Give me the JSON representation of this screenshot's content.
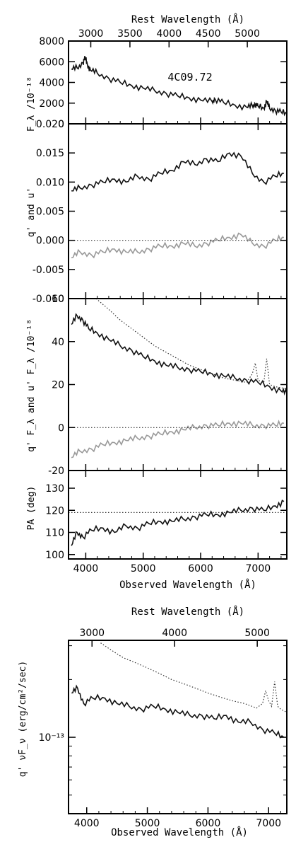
{
  "chart_data": [
    {
      "panel": "flux",
      "type": "line",
      "annotation": "4C09.72",
      "top_axis_label": "Rest Wavelength (Å)",
      "top_ticks": [
        3000,
        3500,
        4000,
        4500,
        5000
      ],
      "ylabel": "F_λ /10⁻¹⁸",
      "ylim": [
        0,
        8000
      ],
      "yticks": [
        0,
        2000,
        4000,
        6000,
        8000
      ],
      "xlim": [
        3700,
        7500
      ],
      "series": [
        {
          "style": "solid",
          "color": "#111111",
          "x": [
            3750,
            3850,
            3950,
            3990,
            4030,
            4080,
            4200,
            4400,
            4600,
            4800,
            5000,
            5200,
            5400,
            5600,
            5800,
            6000,
            6200,
            6250,
            6400,
            6600,
            6800,
            6900,
            6950,
            7000,
            7100,
            7150,
            7200,
            7300,
            7400,
            7500
          ],
          "y": [
            5300,
            5400,
            5900,
            6400,
            5700,
            5200,
            4900,
            4400,
            4000,
            3700,
            3450,
            3200,
            2950,
            2700,
            2500,
            2300,
            2150,
            2400,
            2050,
            1800,
            1600,
            1750,
            1900,
            1700,
            1500,
            2200,
            1500,
            1300,
            1150,
            1000
          ]
        }
      ]
    },
    {
      "panel": "fractional_polarization",
      "type": "line",
      "ylabel": "q' and u'",
      "ylim": [
        -0.01,
        0.02
      ],
      "yticks": [
        "-0.010",
        "-0.005",
        "0.000",
        "0.005",
        "0.010",
        "0.015",
        "0.020"
      ],
      "xlim": [
        3700,
        7500
      ],
      "series": [
        {
          "style": "solid",
          "color": "#111111",
          "x": [
            3750,
            3900,
            4100,
            4300,
            4500,
            4700,
            4900,
            5100,
            5300,
            5500,
            5700,
            5900,
            6100,
            6300,
            6500,
            6700,
            6900,
            7100,
            7300,
            7450
          ],
          "y": [
            0.0085,
            0.009,
            0.0095,
            0.01,
            0.0105,
            0.01,
            0.011,
            0.0105,
            0.0115,
            0.012,
            0.0135,
            0.013,
            0.014,
            0.0135,
            0.015,
            0.0145,
            0.0115,
            0.01,
            0.011,
            0.0115
          ]
        },
        {
          "style": "solid",
          "color": "#999999",
          "x": [
            3750,
            3900,
            4100,
            4300,
            4500,
            4700,
            4900,
            5100,
            5300,
            5500,
            5700,
            5900,
            6100,
            6300,
            6500,
            6700,
            6900,
            7100,
            7300,
            7450
          ],
          "y": [
            -0.003,
            -0.002,
            -0.0025,
            -0.002,
            -0.0015,
            -0.002,
            -0.002,
            -0.0015,
            -0.001,
            -0.001,
            -0.0005,
            -0.001,
            -0.0005,
            0.0,
            0.0005,
            0.001,
            -0.0005,
            -0.001,
            0.0,
            0.0005
          ]
        },
        {
          "style": "dotted",
          "color": "#333333",
          "x": [
            3700,
            7500
          ],
          "y": [
            0.0,
            0.0
          ]
        }
      ]
    },
    {
      "panel": "polarized_flux",
      "type": "line",
      "ylabel": "q' F_λ and u' F_λ /10⁻¹⁸",
      "ylim": [
        -20,
        60
      ],
      "yticks": [
        -20,
        0,
        20,
        40,
        60
      ],
      "xlim": [
        3700,
        7500
      ],
      "series": [
        {
          "style": "solid",
          "color": "#111111",
          "x": [
            3750,
            3850,
            3950,
            4050,
            4200,
            4400,
            4600,
            4800,
            5000,
            5200,
            5400,
            5600,
            5800,
            6000,
            6200,
            6400,
            6600,
            6800,
            7000,
            7200,
            7400,
            7500
          ],
          "y": [
            48,
            52,
            50,
            46,
            44,
            41,
            38,
            36,
            33,
            31,
            29,
            28,
            27,
            26,
            25,
            24,
            23,
            22,
            21,
            19,
            17,
            16
          ]
        },
        {
          "style": "solid",
          "color": "#999999",
          "x": [
            3750,
            3900,
            4100,
            4300,
            4500,
            4700,
            4900,
            5100,
            5300,
            5500,
            5700,
            5900,
            6100,
            6300,
            6500,
            6700,
            6900,
            7100,
            7300,
            7450
          ],
          "y": [
            -14,
            -11,
            -10,
            -8,
            -7,
            -6,
            -5,
            -4,
            -3,
            -2,
            -1,
            0,
            1,
            1,
            2,
            2,
            1,
            1,
            1,
            2
          ]
        },
        {
          "style": "dotted",
          "color": "#333333",
          "x": [
            4180,
            4400,
            4600,
            4800,
            5000,
            5200,
            5400,
            5600,
            5800,
            6000,
            6200,
            6400,
            6600,
            6800,
            6900,
            6950,
            7000,
            7100,
            7150,
            7200,
            7300,
            7500
          ],
          "y": [
            60,
            55,
            50,
            46,
            42,
            38,
            35,
            32,
            29,
            27,
            25,
            23,
            22,
            21,
            25,
            30,
            22,
            21,
            32,
            20,
            19,
            18
          ]
        },
        {
          "style": "dotted",
          "color": "#333333",
          "x": [
            3700,
            7500
          ],
          "y": [
            0,
            0
          ]
        }
      ]
    },
    {
      "panel": "position_angle",
      "type": "line",
      "ylabel": "PA (deg)",
      "ylim": [
        98,
        138
      ],
      "yticks": [
        100,
        110,
        120,
        130
      ],
      "xlim": [
        3700,
        7500
      ],
      "xticks": [
        4000,
        5000,
        6000,
        7000
      ],
      "xlabel": "Observed Wavelength (Å)",
      "series": [
        {
          "style": "solid",
          "color": "#111111",
          "x": [
            3750,
            3850,
            3950,
            4100,
            4300,
            4500,
            4700,
            4900,
            5100,
            5300,
            5500,
            5700,
            5900,
            6100,
            6300,
            6500,
            6700,
            6900,
            7100,
            7300,
            7450
          ],
          "y": [
            104,
            110,
            108,
            111,
            112,
            110,
            113,
            112,
            114,
            115,
            115,
            116,
            117,
            118,
            118,
            119,
            120,
            121,
            120,
            122,
            124
          ]
        },
        {
          "style": "dotted",
          "color": "#333333",
          "x": [
            3700,
            7500
          ],
          "y": [
            119,
            119
          ]
        }
      ]
    },
    {
      "panel": "sed",
      "type": "line",
      "top_axis_label": "Rest Wavelength (Å)",
      "top_ticks": [
        3000,
        4000,
        5000
      ],
      "ylabel": "q' νF_ν (erg/cm²/sec)",
      "y_tick_label": "10⁻¹³",
      "yscale": "log",
      "ylim": [
        4e-14,
        3.2e-13
      ],
      "xlim": [
        3700,
        7300
      ],
      "xticks": [
        4000,
        5000,
        6000,
        7000
      ],
      "xlabel": "Observed Wavelength (Å)",
      "series": [
        {
          "style": "solid",
          "color": "#111111",
          "x": [
            3750,
            3850,
            3950,
            4100,
            4300,
            4500,
            4700,
            4900,
            5100,
            5300,
            5500,
            5700,
            5900,
            6100,
            6300,
            6500,
            6700,
            6900,
            7100,
            7250
          ],
          "y": [
            1.7e-13,
            1.8e-13,
            1.5e-13,
            1.6e-13,
            1.6e-13,
            1.5e-13,
            1.45e-13,
            1.4e-13,
            1.45e-13,
            1.4e-13,
            1.35e-13,
            1.3e-13,
            1.3e-13,
            1.25e-13,
            1.3e-13,
            1.2e-13,
            1.2e-13,
            1.1e-13,
            1.05e-13,
            1e-13
          ]
        },
        {
          "style": "dotted",
          "color": "#333333",
          "x": [
            4230,
            4400,
            4600,
            4800,
            5000,
            5200,
            5400,
            5600,
            5800,
            6000,
            6200,
            6400,
            6600,
            6800,
            6900,
            6950,
            7000,
            7050,
            7100,
            7150,
            7200,
            7300
          ],
          "y": [
            3.1e-13,
            2.85e-13,
            2.6e-13,
            2.45e-13,
            2.3e-13,
            2.15e-13,
            2e-13,
            1.9e-13,
            1.8e-13,
            1.7e-13,
            1.62e-13,
            1.55e-13,
            1.5e-13,
            1.42e-13,
            1.5e-13,
            1.75e-13,
            1.55e-13,
            1.45e-13,
            1.95e-13,
            1.45e-13,
            1.4e-13,
            1.35e-13
          ]
        }
      ]
    }
  ]
}
